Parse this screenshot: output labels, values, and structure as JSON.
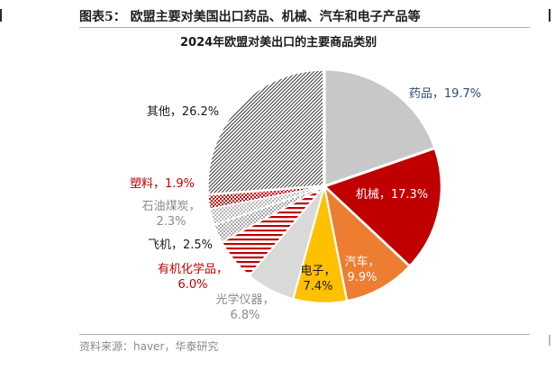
{
  "header": {
    "figure_title": "图表5：  欧盟主要对美国出口药品、机械、汽车和电子产品等"
  },
  "footer": {
    "source": "资料来源：haver，华泰研究"
  },
  "chart_data": {
    "type": "pie",
    "title": "2024年欧盟对美出口的主要商品类别",
    "slices": [
      {
        "name": "药品",
        "value": 19.7,
        "label": "19.7%",
        "color": "#c8c8c8",
        "label_color": "#2e4a7a",
        "pattern": "solid"
      },
      {
        "name": "机械",
        "value": 17.3,
        "label": "17.3%",
        "color": "#c00000",
        "label_color": "#ffffff",
        "pattern": "solid"
      },
      {
        "name": "汽车",
        "value": 9.9,
        "label": "9.9%",
        "color": "#ed7d31",
        "label_color": "#ffffff",
        "pattern": "solid"
      },
      {
        "name": "电子",
        "value": 7.4,
        "label": "7.4%",
        "color": "#ffc000",
        "label_color": "#1a1a1a",
        "pattern": "solid"
      },
      {
        "name": "光学仪器",
        "value": 6.8,
        "label": "6.8%",
        "color": "#d9d9d9",
        "label_color": "#8a8a8a",
        "pattern": "solid"
      },
      {
        "name": "有机化学品",
        "value": 6.0,
        "label": "6.0%",
        "color": "#c00000",
        "label_color": "#c00000",
        "pattern": "hstripes"
      },
      {
        "name": "飞机",
        "value": 2.5,
        "label": "2.5%",
        "color": "#404040",
        "label_color": "#1a1a1a",
        "pattern": "dots"
      },
      {
        "name": "石油煤炭",
        "value": 2.3,
        "label": "2.3%",
        "color": "#a6a6a6",
        "label_color": "#8a8a8a",
        "pattern": "dots"
      },
      {
        "name": "塑料",
        "value": 1.9,
        "label": "1.9%",
        "color": "#c00000",
        "label_color": "#c00000",
        "pattern": "checks"
      },
      {
        "name": "其他",
        "value": 26.2,
        "label": "26.2%",
        "color": "#404040",
        "label_color": "#1a1a1a",
        "pattern": "diag"
      }
    ]
  }
}
